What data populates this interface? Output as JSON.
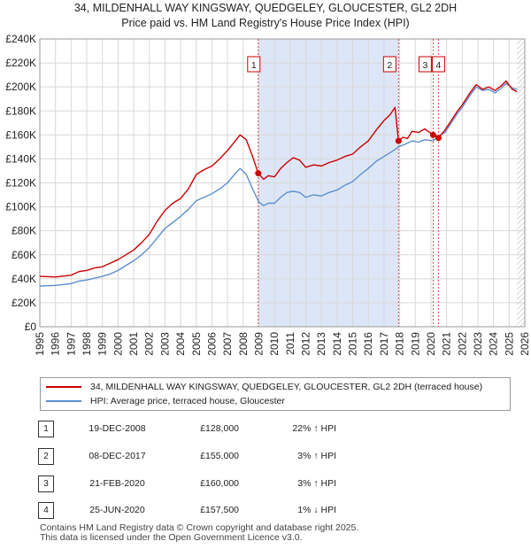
{
  "title_line1": "34, MILDENHALL WAY KINGSWAY, QUEDGELEY, GLOUCESTER, GL2 2DH",
  "title_line2": "Price paid vs. HM Land Registry's House Price Index (HPI)",
  "colors": {
    "red": "#cc0000",
    "blue": "#5b8fd0",
    "shade": "#dde6f7",
    "grid": "#d8d8d8",
    "vline": "#cc0000"
  },
  "chart_data": {
    "type": "line",
    "xlim": [
      1995,
      2026
    ],
    "ylim": [
      0,
      240000
    ],
    "x_ticks": [
      1995,
      1996,
      1997,
      1998,
      1999,
      2000,
      2001,
      2002,
      2003,
      2004,
      2005,
      2006,
      2007,
      2008,
      2009,
      2010,
      2011,
      2012,
      2013,
      2014,
      2015,
      2016,
      2017,
      2018,
      2019,
      2020,
      2021,
      2022,
      2023,
      2024,
      2025,
      2026
    ],
    "y_ticks": [
      {
        "value": 0,
        "label": "£0"
      },
      {
        "value": 20000,
        "label": "£20K"
      },
      {
        "value": 40000,
        "label": "£40K"
      },
      {
        "value": 60000,
        "label": "£60K"
      },
      {
        "value": 80000,
        "label": "£80K"
      },
      {
        "value": 100000,
        "label": "£100K"
      },
      {
        "value": 120000,
        "label": "£120K"
      },
      {
        "value": 140000,
        "label": "£140K"
      },
      {
        "value": 160000,
        "label": "£160K"
      },
      {
        "value": 180000,
        "label": "£180K"
      },
      {
        "value": 200000,
        "label": "£200K"
      },
      {
        "value": 220000,
        "label": "£220K"
      },
      {
        "value": 240000,
        "label": "£240K"
      }
    ],
    "shaded_range": [
      2008.96,
      2017.93
    ],
    "series": [
      {
        "name": "34, MILDENHALL WAY KINGSWAY, QUEDGELEY, GLOUCESTER, GL2 2DH (terraced house)",
        "color": "#cc0000",
        "points": [
          [
            1995.0,
            42000
          ],
          [
            1996.0,
            41500
          ],
          [
            1997.0,
            43000
          ],
          [
            1997.5,
            46000
          ],
          [
            1998.0,
            47000
          ],
          [
            1998.5,
            49000
          ],
          [
            1999.0,
            50000
          ],
          [
            1999.5,
            53000
          ],
          [
            2000.0,
            56000
          ],
          [
            2000.5,
            60000
          ],
          [
            2001.0,
            64000
          ],
          [
            2001.5,
            70000
          ],
          [
            2002.0,
            77000
          ],
          [
            2002.5,
            88000
          ],
          [
            2003.0,
            97000
          ],
          [
            2003.5,
            103000
          ],
          [
            2004.0,
            107000
          ],
          [
            2004.5,
            115000
          ],
          [
            2005.0,
            127000
          ],
          [
            2005.5,
            131000
          ],
          [
            2006.0,
            134000
          ],
          [
            2006.5,
            140000
          ],
          [
            2007.0,
            147000
          ],
          [
            2007.5,
            155000
          ],
          [
            2007.8,
            160000
          ],
          [
            2008.2,
            156000
          ],
          [
            2008.6,
            142000
          ],
          [
            2008.96,
            128000
          ],
          [
            2009.3,
            123000
          ],
          [
            2009.6,
            126000
          ],
          [
            2010.0,
            125000
          ],
          [
            2010.4,
            132000
          ],
          [
            2010.8,
            137000
          ],
          [
            2011.2,
            141000
          ],
          [
            2011.6,
            139000
          ],
          [
            2012.0,
            133000
          ],
          [
            2012.5,
            135000
          ],
          [
            2013.0,
            134000
          ],
          [
            2013.5,
            137000
          ],
          [
            2014.0,
            139000
          ],
          [
            2014.5,
            142000
          ],
          [
            2015.0,
            144000
          ],
          [
            2015.5,
            150000
          ],
          [
            2016.0,
            155000
          ],
          [
            2016.5,
            164000
          ],
          [
            2017.0,
            172000
          ],
          [
            2017.4,
            177000
          ],
          [
            2017.7,
            183000
          ],
          [
            2017.93,
            155000
          ],
          [
            2018.2,
            158000
          ],
          [
            2018.5,
            157000
          ],
          [
            2018.8,
            163000
          ],
          [
            2019.2,
            162000
          ],
          [
            2019.6,
            165000
          ],
          [
            2020.14,
            160000
          ],
          [
            2020.48,
            157500
          ],
          [
            2020.9,
            164000
          ],
          [
            2021.3,
            172000
          ],
          [
            2021.7,
            180000
          ],
          [
            2022.0,
            185000
          ],
          [
            2022.5,
            195000
          ],
          [
            2022.9,
            202000
          ],
          [
            2023.3,
            198000
          ],
          [
            2023.7,
            200000
          ],
          [
            2024.1,
            197000
          ],
          [
            2024.5,
            201000
          ],
          [
            2024.8,
            205000
          ],
          [
            2025.2,
            198000
          ],
          [
            2025.5,
            196000
          ]
        ]
      },
      {
        "name": "HPI: Average price, terraced house, Gloucester",
        "color": "#5b8fd0",
        "points": [
          [
            1995.0,
            34000
          ],
          [
            1996.0,
            34500
          ],
          [
            1997.0,
            36000
          ],
          [
            1997.5,
            38000
          ],
          [
            1998.0,
            39000
          ],
          [
            1998.5,
            40500
          ],
          [
            1999.0,
            42000
          ],
          [
            1999.5,
            44000
          ],
          [
            2000.0,
            47000
          ],
          [
            2000.5,
            51000
          ],
          [
            2001.0,
            55000
          ],
          [
            2001.5,
            60000
          ],
          [
            2002.0,
            66000
          ],
          [
            2002.5,
            74000
          ],
          [
            2003.0,
            82000
          ],
          [
            2003.5,
            87000
          ],
          [
            2004.0,
            92000
          ],
          [
            2004.5,
            98000
          ],
          [
            2005.0,
            105000
          ],
          [
            2005.5,
            108000
          ],
          [
            2006.0,
            111000
          ],
          [
            2006.5,
            115000
          ],
          [
            2007.0,
            120000
          ],
          [
            2007.5,
            128000
          ],
          [
            2007.8,
            132000
          ],
          [
            2008.2,
            127000
          ],
          [
            2008.6,
            115000
          ],
          [
            2009.0,
            104000
          ],
          [
            2009.3,
            101000
          ],
          [
            2009.6,
            103000
          ],
          [
            2010.0,
            103000
          ],
          [
            2010.4,
            108000
          ],
          [
            2010.8,
            112000
          ],
          [
            2011.2,
            113000
          ],
          [
            2011.6,
            112000
          ],
          [
            2012.0,
            108000
          ],
          [
            2012.5,
            110000
          ],
          [
            2013.0,
            109000
          ],
          [
            2013.5,
            112000
          ],
          [
            2014.0,
            114000
          ],
          [
            2014.5,
            118000
          ],
          [
            2015.0,
            121000
          ],
          [
            2015.5,
            127000
          ],
          [
            2016.0,
            132000
          ],
          [
            2016.5,
            138000
          ],
          [
            2017.0,
            142000
          ],
          [
            2017.5,
            146000
          ],
          [
            2017.93,
            150000
          ],
          [
            2018.3,
            152000
          ],
          [
            2018.8,
            155000
          ],
          [
            2019.2,
            154000
          ],
          [
            2019.6,
            156000
          ],
          [
            2020.14,
            155000
          ],
          [
            2020.48,
            159000
          ],
          [
            2020.9,
            162000
          ],
          [
            2021.3,
            170000
          ],
          [
            2021.7,
            178000
          ],
          [
            2022.0,
            183000
          ],
          [
            2022.5,
            193000
          ],
          [
            2022.9,
            200000
          ],
          [
            2023.3,
            197000
          ],
          [
            2023.7,
            198000
          ],
          [
            2024.1,
            195000
          ],
          [
            2024.5,
            199000
          ],
          [
            2024.8,
            203000
          ],
          [
            2025.2,
            199000
          ],
          [
            2025.5,
            198000
          ]
        ]
      }
    ],
    "sales": [
      {
        "id": "1",
        "x": 2008.96,
        "price": 128000
      },
      {
        "id": "2",
        "x": 2017.93,
        "price": 155000
      },
      {
        "id": "3",
        "x": 2020.14,
        "price": 160000
      },
      {
        "id": "4",
        "x": 2020.48,
        "price": 157500
      }
    ],
    "hatched_from": 2025.5
  },
  "legend": {
    "red_label": "34, MILDENHALL WAY KINGSWAY, QUEDGELEY, GLOUCESTER, GL2 2DH (terraced house)",
    "blue_label": "HPI: Average price, terraced house, Gloucester"
  },
  "transactions": [
    {
      "id": "1",
      "date": "19-DEC-2008",
      "price": "£128,000",
      "hpi": "22% ↑ HPI"
    },
    {
      "id": "2",
      "date": "08-DEC-2017",
      "price": "£155,000",
      "hpi": "3% ↑ HPI"
    },
    {
      "id": "3",
      "date": "21-FEB-2020",
      "price": "£160,000",
      "hpi": "3% ↑ HPI"
    },
    {
      "id": "4",
      "date": "25-JUN-2020",
      "price": "£157,500",
      "hpi": "1% ↓ HPI"
    }
  ],
  "footer_line1": "Contains HM Land Registry data © Crown copyright and database right 2025.",
  "footer_line2": "This data is licensed under the Open Government Licence v3.0."
}
